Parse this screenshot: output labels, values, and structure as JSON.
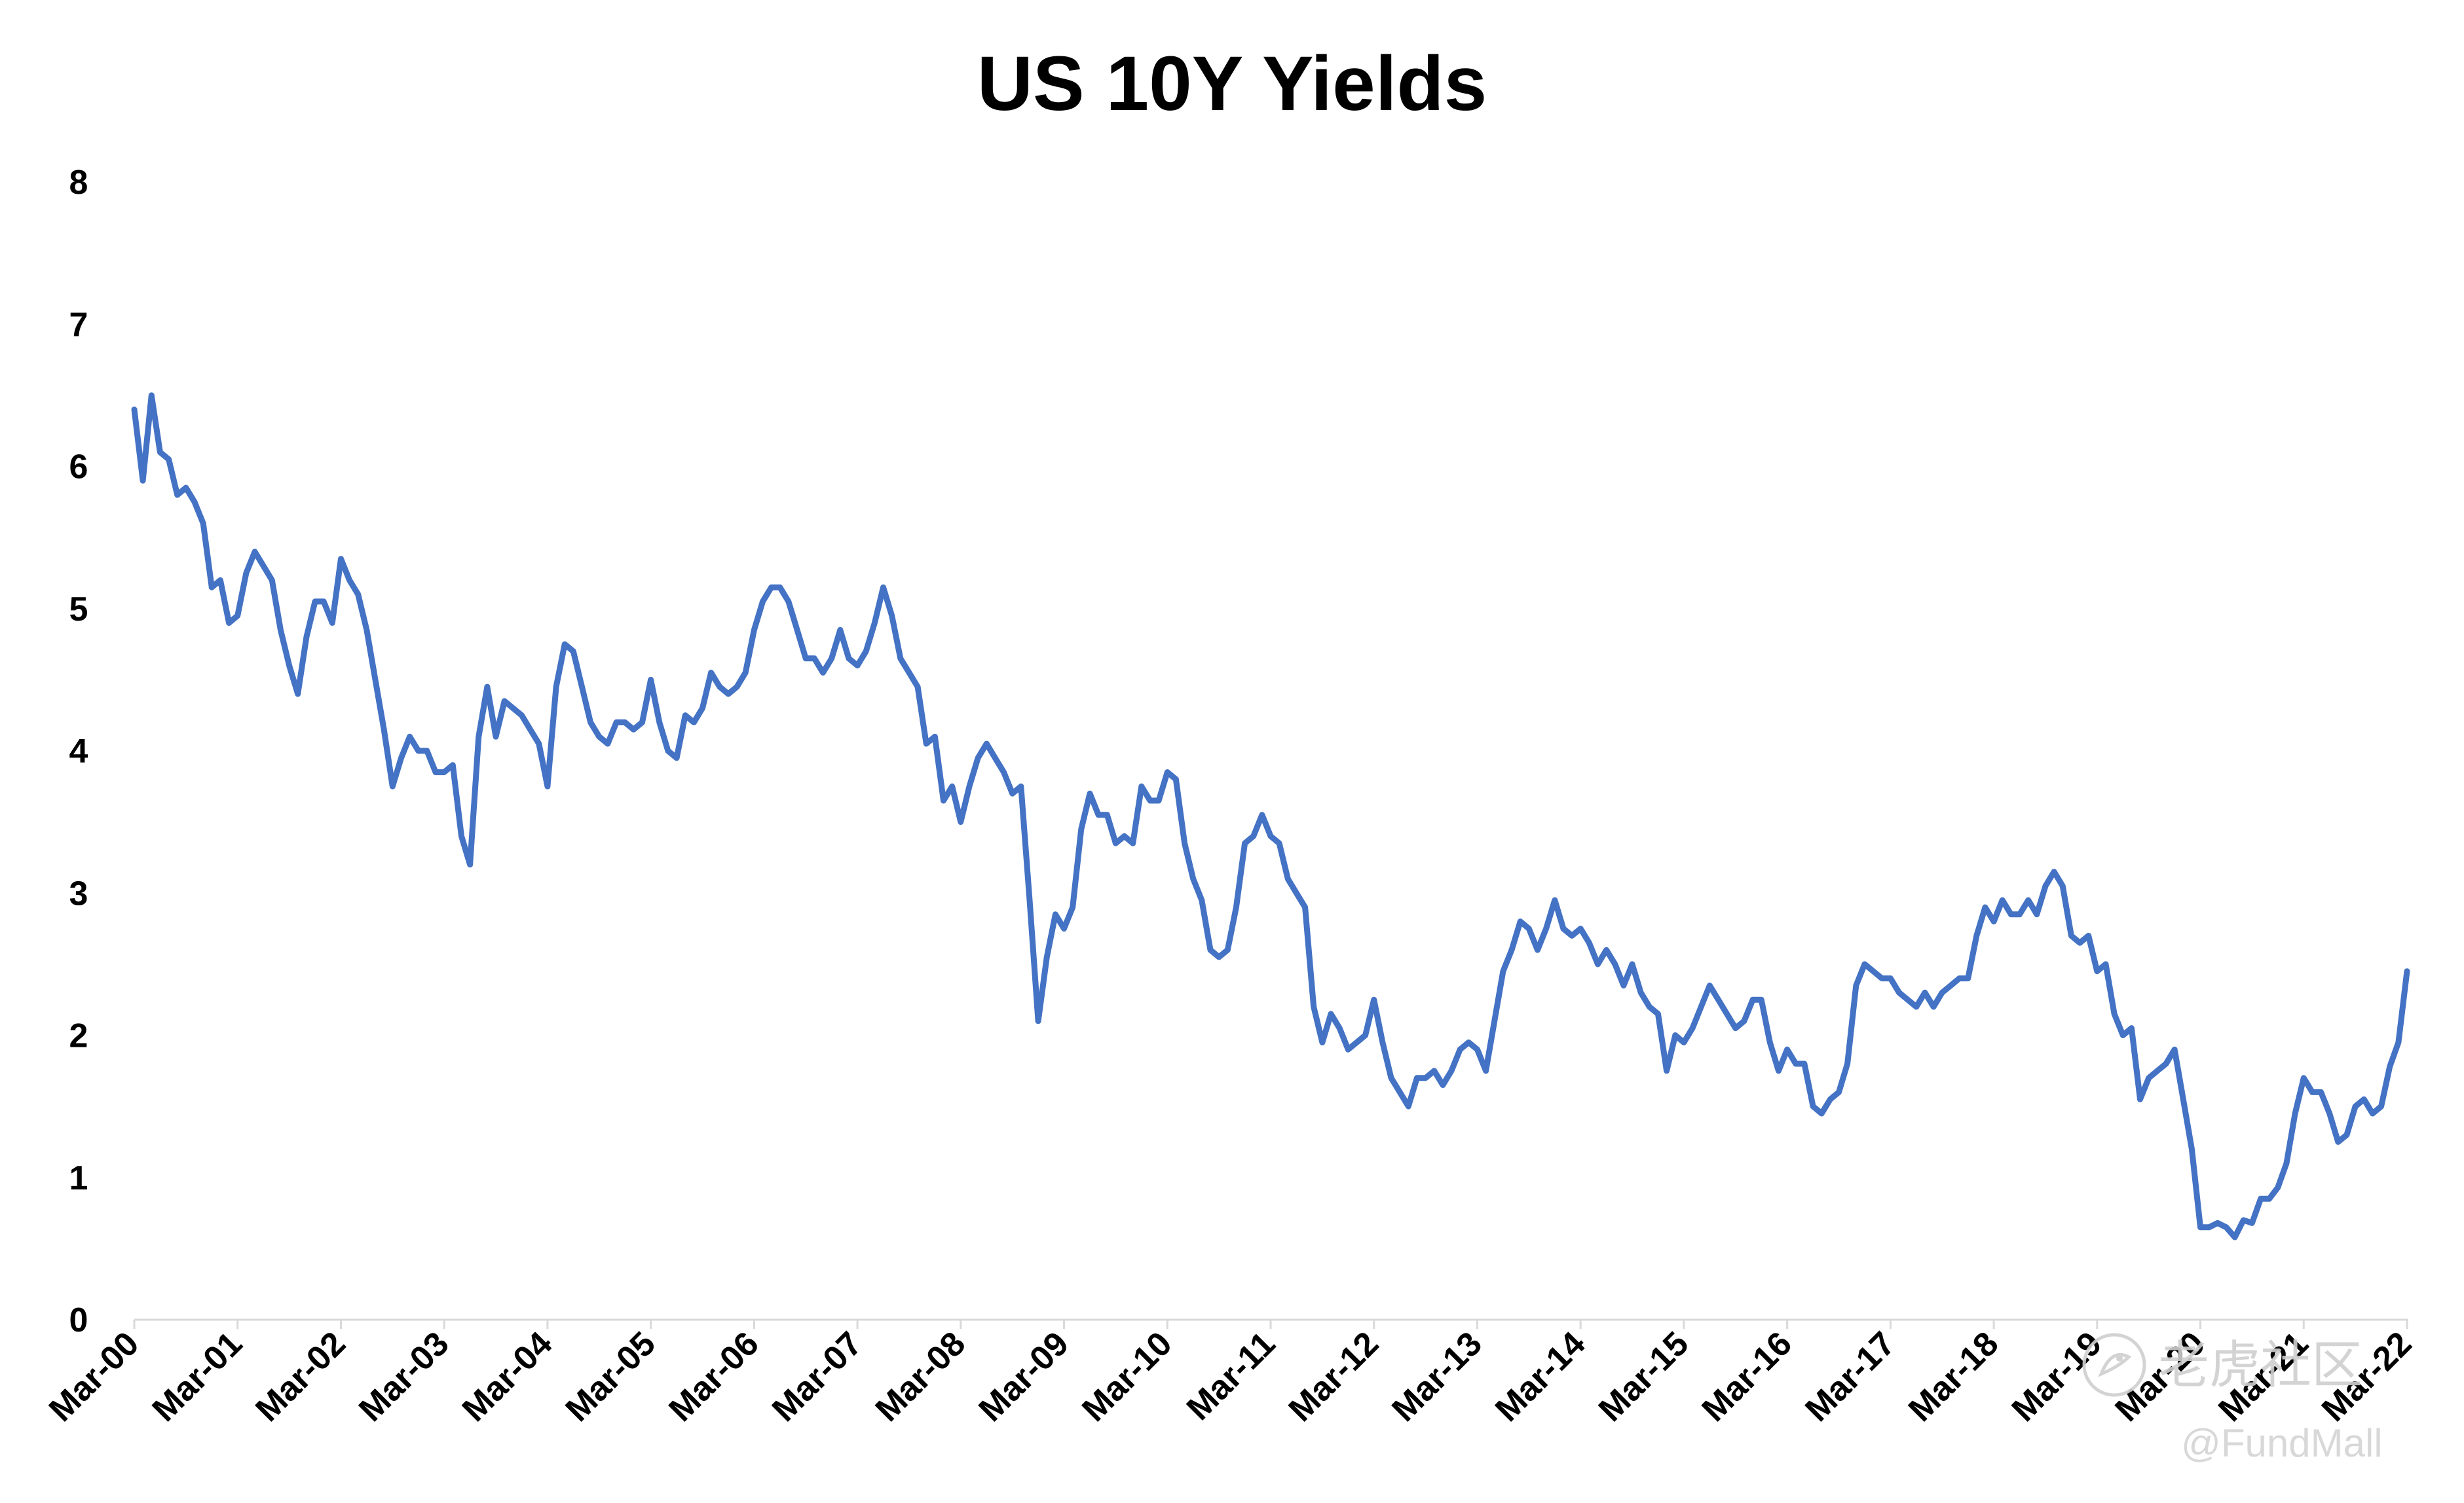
{
  "chart_data": {
    "type": "line",
    "title": "US 10Y Yields",
    "xlabel": "",
    "ylabel": "",
    "ylim": [
      0,
      8
    ],
    "yticks": [
      "0",
      "1",
      "2",
      "3",
      "4",
      "5",
      "6",
      "7",
      "8"
    ],
    "xticks": [
      "Mar-00",
      "Mar-01",
      "Mar-02",
      "Mar-03",
      "Mar-04",
      "Mar-05",
      "Mar-06",
      "Mar-07",
      "Mar-08",
      "Mar-09",
      "Mar-10",
      "Mar-11",
      "Mar-12",
      "Mar-13",
      "Mar-14",
      "Mar-15",
      "Mar-16",
      "Mar-17",
      "Mar-18",
      "Mar-19",
      "Mar-20",
      "Mar-21",
      "Mar-22"
    ],
    "grid": false,
    "legend": "none",
    "series": [
      {
        "color": "#4472C4",
        "points": [
          [
            "2000-03",
            6.4
          ],
          [
            "2000-04",
            5.9
          ],
          [
            "2000-05",
            6.5
          ],
          [
            "2000-06",
            6.1
          ],
          [
            "2000-07",
            6.05
          ],
          [
            "2000-08",
            5.8
          ],
          [
            "2000-09",
            5.85
          ],
          [
            "2000-10",
            5.75
          ],
          [
            "2000-11",
            5.6
          ],
          [
            "2000-12",
            5.15
          ],
          [
            "2001-01",
            5.2
          ],
          [
            "2001-02",
            4.9
          ],
          [
            "2001-03",
            4.95
          ],
          [
            "2001-04",
            5.25
          ],
          [
            "2001-05",
            5.4
          ],
          [
            "2001-06",
            5.3
          ],
          [
            "2001-07",
            5.2
          ],
          [
            "2001-08",
            4.85
          ],
          [
            "2001-09",
            4.6
          ],
          [
            "2001-10",
            4.4
          ],
          [
            "2001-11",
            4.8
          ],
          [
            "2001-12",
            5.05
          ],
          [
            "2002-01",
            5.05
          ],
          [
            "2002-02",
            4.9
          ],
          [
            "2002-03",
            5.35
          ],
          [
            "2002-04",
            5.2
          ],
          [
            "2002-05",
            5.1
          ],
          [
            "2002-06",
            4.85
          ],
          [
            "2002-07",
            4.5
          ],
          [
            "2002-08",
            4.15
          ],
          [
            "2002-09",
            3.75
          ],
          [
            "2002-10",
            3.95
          ],
          [
            "2002-11",
            4.1
          ],
          [
            "2002-12",
            4.0
          ],
          [
            "2003-01",
            4.0
          ],
          [
            "2003-02",
            3.85
          ],
          [
            "2003-03",
            3.85
          ],
          [
            "2003-04",
            3.9
          ],
          [
            "2003-05",
            3.4
          ],
          [
            "2003-06",
            3.2
          ],
          [
            "2003-07",
            4.1
          ],
          [
            "2003-08",
            4.45
          ],
          [
            "2003-09",
            4.1
          ],
          [
            "2003-10",
            4.35
          ],
          [
            "2003-11",
            4.3
          ],
          [
            "2003-12",
            4.25
          ],
          [
            "2004-01",
            4.15
          ],
          [
            "2004-02",
            4.05
          ],
          [
            "2004-03",
            3.75
          ],
          [
            "2004-04",
            4.45
          ],
          [
            "2004-05",
            4.75
          ],
          [
            "2004-06",
            4.7
          ],
          [
            "2004-07",
            4.45
          ],
          [
            "2004-08",
            4.2
          ],
          [
            "2004-09",
            4.1
          ],
          [
            "2004-10",
            4.05
          ],
          [
            "2004-11",
            4.2
          ],
          [
            "2004-12",
            4.2
          ],
          [
            "2005-01",
            4.15
          ],
          [
            "2005-02",
            4.2
          ],
          [
            "2005-03",
            4.5
          ],
          [
            "2005-04",
            4.2
          ],
          [
            "2005-05",
            4.0
          ],
          [
            "2005-06",
            3.95
          ],
          [
            "2005-07",
            4.25
          ],
          [
            "2005-08",
            4.2
          ],
          [
            "2005-09",
            4.3
          ],
          [
            "2005-10",
            4.55
          ],
          [
            "2005-11",
            4.45
          ],
          [
            "2005-12",
            4.4
          ],
          [
            "2006-01",
            4.45
          ],
          [
            "2006-02",
            4.55
          ],
          [
            "2006-03",
            4.85
          ],
          [
            "2006-04",
            5.05
          ],
          [
            "2006-05",
            5.15
          ],
          [
            "2006-06",
            5.15
          ],
          [
            "2006-07",
            5.05
          ],
          [
            "2006-08",
            4.85
          ],
          [
            "2006-09",
            4.65
          ],
          [
            "2006-10",
            4.65
          ],
          [
            "2006-11",
            4.55
          ],
          [
            "2006-12",
            4.65
          ],
          [
            "2007-01",
            4.85
          ],
          [
            "2007-02",
            4.65
          ],
          [
            "2007-03",
            4.6
          ],
          [
            "2007-04",
            4.7
          ],
          [
            "2007-05",
            4.9
          ],
          [
            "2007-06",
            5.15
          ],
          [
            "2007-07",
            4.95
          ],
          [
            "2007-08",
            4.65
          ],
          [
            "2007-09",
            4.55
          ],
          [
            "2007-10",
            4.45
          ],
          [
            "2007-11",
            4.05
          ],
          [
            "2007-12",
            4.1
          ],
          [
            "2008-01",
            3.65
          ],
          [
            "2008-02",
            3.75
          ],
          [
            "2008-03",
            3.5
          ],
          [
            "2008-04",
            3.75
          ],
          [
            "2008-05",
            3.95
          ],
          [
            "2008-06",
            4.05
          ],
          [
            "2008-07",
            3.95
          ],
          [
            "2008-08",
            3.85
          ],
          [
            "2008-09",
            3.7
          ],
          [
            "2008-10",
            3.75
          ],
          [
            "2008-11",
            2.95
          ],
          [
            "2008-12",
            2.1
          ],
          [
            "2009-01",
            2.55
          ],
          [
            "2009-02",
            2.85
          ],
          [
            "2009-03",
            2.75
          ],
          [
            "2009-04",
            2.9
          ],
          [
            "2009-05",
            3.45
          ],
          [
            "2009-06",
            3.7
          ],
          [
            "2009-07",
            3.55
          ],
          [
            "2009-08",
            3.55
          ],
          [
            "2009-09",
            3.35
          ],
          [
            "2009-10",
            3.4
          ],
          [
            "2009-11",
            3.35
          ],
          [
            "2009-12",
            3.75
          ],
          [
            "2010-01",
            3.65
          ],
          [
            "2010-02",
            3.65
          ],
          [
            "2010-03",
            3.85
          ],
          [
            "2010-04",
            3.8
          ],
          [
            "2010-05",
            3.35
          ],
          [
            "2010-06",
            3.1
          ],
          [
            "2010-07",
            2.95
          ],
          [
            "2010-08",
            2.6
          ],
          [
            "2010-09",
            2.55
          ],
          [
            "2010-10",
            2.6
          ],
          [
            "2010-11",
            2.9
          ],
          [
            "2010-12",
            3.35
          ],
          [
            "2011-01",
            3.4
          ],
          [
            "2011-02",
            3.55
          ],
          [
            "2011-03",
            3.4
          ],
          [
            "2011-04",
            3.35
          ],
          [
            "2011-05",
            3.1
          ],
          [
            "2011-06",
            3.0
          ],
          [
            "2011-07",
            2.9
          ],
          [
            "2011-08",
            2.2
          ],
          [
            "2011-09",
            1.95
          ],
          [
            "2011-10",
            2.15
          ],
          [
            "2011-11",
            2.05
          ],
          [
            "2011-12",
            1.9
          ],
          [
            "2012-01",
            1.95
          ],
          [
            "2012-02",
            2.0
          ],
          [
            "2012-03",
            2.25
          ],
          [
            "2012-04",
            1.95
          ],
          [
            "2012-05",
            1.7
          ],
          [
            "2012-06",
            1.6
          ],
          [
            "2012-07",
            1.5
          ],
          [
            "2012-08",
            1.7
          ],
          [
            "2012-09",
            1.7
          ],
          [
            "2012-10",
            1.75
          ],
          [
            "2012-11",
            1.65
          ],
          [
            "2012-12",
            1.75
          ],
          [
            "2013-01",
            1.9
          ],
          [
            "2013-02",
            1.95
          ],
          [
            "2013-03",
            1.9
          ],
          [
            "2013-04",
            1.75
          ],
          [
            "2013-05",
            2.1
          ],
          [
            "2013-06",
            2.45
          ],
          [
            "2013-07",
            2.6
          ],
          [
            "2013-08",
            2.8
          ],
          [
            "2013-09",
            2.75
          ],
          [
            "2013-10",
            2.6
          ],
          [
            "2013-11",
            2.75
          ],
          [
            "2013-12",
            2.95
          ],
          [
            "2014-01",
            2.75
          ],
          [
            "2014-02",
            2.7
          ],
          [
            "2014-03",
            2.75
          ],
          [
            "2014-04",
            2.65
          ],
          [
            "2014-05",
            2.5
          ],
          [
            "2014-06",
            2.6
          ],
          [
            "2014-07",
            2.5
          ],
          [
            "2014-08",
            2.35
          ],
          [
            "2014-09",
            2.5
          ],
          [
            "2014-10",
            2.3
          ],
          [
            "2014-11",
            2.2
          ],
          [
            "2014-12",
            2.15
          ],
          [
            "2015-01",
            1.75
          ],
          [
            "2015-02",
            2.0
          ],
          [
            "2015-03",
            1.95
          ],
          [
            "2015-04",
            2.05
          ],
          [
            "2015-05",
            2.2
          ],
          [
            "2015-06",
            2.35
          ],
          [
            "2015-07",
            2.25
          ],
          [
            "2015-08",
            2.15
          ],
          [
            "2015-09",
            2.05
          ],
          [
            "2015-10",
            2.1
          ],
          [
            "2015-11",
            2.25
          ],
          [
            "2015-12",
            2.25
          ],
          [
            "2016-01",
            1.95
          ],
          [
            "2016-02",
            1.75
          ],
          [
            "2016-03",
            1.9
          ],
          [
            "2016-04",
            1.8
          ],
          [
            "2016-05",
            1.8
          ],
          [
            "2016-06",
            1.5
          ],
          [
            "2016-07",
            1.45
          ],
          [
            "2016-08",
            1.55
          ],
          [
            "2016-09",
            1.6
          ],
          [
            "2016-10",
            1.8
          ],
          [
            "2016-11",
            2.35
          ],
          [
            "2016-12",
            2.5
          ],
          [
            "2017-01",
            2.45
          ],
          [
            "2017-02",
            2.4
          ],
          [
            "2017-03",
            2.4
          ],
          [
            "2017-04",
            2.3
          ],
          [
            "2017-05",
            2.25
          ],
          [
            "2017-06",
            2.2
          ],
          [
            "2017-07",
            2.3
          ],
          [
            "2017-08",
            2.2
          ],
          [
            "2017-09",
            2.3
          ],
          [
            "2017-10",
            2.35
          ],
          [
            "2017-11",
            2.4
          ],
          [
            "2017-12",
            2.4
          ],
          [
            "2018-01",
            2.7
          ],
          [
            "2018-02",
            2.9
          ],
          [
            "2018-03",
            2.8
          ],
          [
            "2018-04",
            2.95
          ],
          [
            "2018-05",
            2.85
          ],
          [
            "2018-06",
            2.85
          ],
          [
            "2018-07",
            2.95
          ],
          [
            "2018-08",
            2.85
          ],
          [
            "2018-09",
            3.05
          ],
          [
            "2018-10",
            3.15
          ],
          [
            "2018-11",
            3.05
          ],
          [
            "2018-12",
            2.7
          ],
          [
            "2019-01",
            2.65
          ],
          [
            "2019-02",
            2.7
          ],
          [
            "2019-03",
            2.45
          ],
          [
            "2019-04",
            2.5
          ],
          [
            "2019-05",
            2.15
          ],
          [
            "2019-06",
            2.0
          ],
          [
            "2019-07",
            2.05
          ],
          [
            "2019-08",
            1.55
          ],
          [
            "2019-09",
            1.7
          ],
          [
            "2019-10",
            1.75
          ],
          [
            "2019-11",
            1.8
          ],
          [
            "2019-12",
            1.9
          ],
          [
            "2020-01",
            1.55
          ],
          [
            "2020-02",
            1.2
          ],
          [
            "2020-03",
            0.65
          ],
          [
            "2020-04",
            0.65
          ],
          [
            "2020-05",
            0.68
          ],
          [
            "2020-06",
            0.65
          ],
          [
            "2020-07",
            0.58
          ],
          [
            "2020-08",
            0.7
          ],
          [
            "2020-09",
            0.68
          ],
          [
            "2020-10",
            0.85
          ],
          [
            "2020-11",
            0.85
          ],
          [
            "2020-12",
            0.93
          ],
          [
            "2021-01",
            1.1
          ],
          [
            "2021-02",
            1.45
          ],
          [
            "2021-03",
            1.7
          ],
          [
            "2021-04",
            1.6
          ],
          [
            "2021-05",
            1.6
          ],
          [
            "2021-06",
            1.45
          ],
          [
            "2021-07",
            1.25
          ],
          [
            "2021-08",
            1.3
          ],
          [
            "2021-09",
            1.5
          ],
          [
            "2021-10",
            1.55
          ],
          [
            "2021-11",
            1.45
          ],
          [
            "2021-12",
            1.5
          ],
          [
            "2022-01",
            1.78
          ],
          [
            "2022-02",
            1.95
          ],
          [
            "2022-03",
            2.45
          ]
        ]
      }
    ]
  },
  "watermark": {
    "text": "老虎社区",
    "handle": "@FundMall",
    "icon": "tiger-logo-icon"
  }
}
